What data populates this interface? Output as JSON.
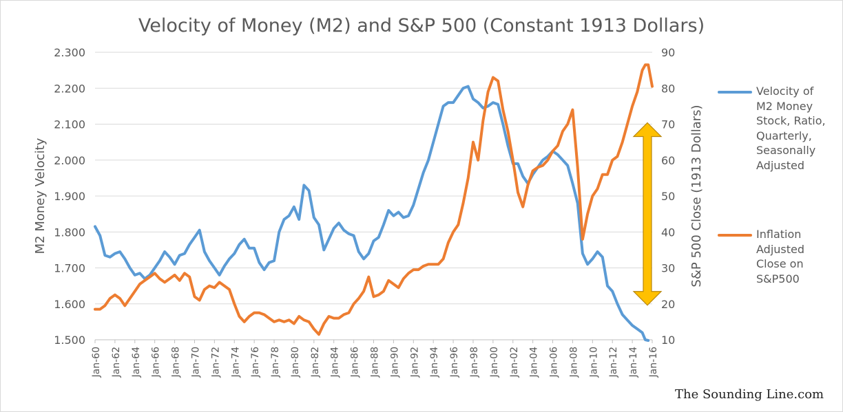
{
  "chart_data": {
    "type": "line",
    "title": "Velocity of Money (M2) and S&P 500 (Constant 1913 Dollars)",
    "xlabel": "",
    "ylabel_left": "M2 Money Velocity",
    "ylabel_right": "S&P 500 Close (1913 Dollars)",
    "x_tick_labels": [
      "Jan-60",
      "Jan-62",
      "Jan-64",
      "Jan-66",
      "Jan-68",
      "Jan-70",
      "Jan-72",
      "Jan-74",
      "Jan-76",
      "Jan-78",
      "Jan-80",
      "Jan-82",
      "Jan-84",
      "Jan-86",
      "Jan-88",
      "Jan-90",
      "Jan-92",
      "Jan-94",
      "Jan-96",
      "Jan-98",
      "Jan-00",
      "Jan-02",
      "Jan-04",
      "Jan-06",
      "Jan-08",
      "Jan-10",
      "Jan-12",
      "Jan-14",
      "Jan-16"
    ],
    "x_range": [
      1960,
      2016
    ],
    "y_left": {
      "range": [
        1.5,
        2.3
      ],
      "ticks": [
        "1.500",
        "1.600",
        "1.700",
        "1.800",
        "1.900",
        "2.000",
        "2.100",
        "2.200",
        "2.300"
      ]
    },
    "y_right": {
      "range": [
        10,
        90
      ],
      "ticks": [
        "10",
        "20",
        "30",
        "40",
        "50",
        "60",
        "70",
        "80",
        "90"
      ]
    },
    "grid": "horizontal",
    "legend_position": "right",
    "series": [
      {
        "name": "Velocity of M2 Money Stock, Ratio, Quarterly, Seasonally Adjusted",
        "axis": "left",
        "color": "#5b9bd5",
        "points": [
          [
            1960.0,
            1.815
          ],
          [
            1960.5,
            1.79
          ],
          [
            1961.0,
            1.735
          ],
          [
            1961.5,
            1.73
          ],
          [
            1962.0,
            1.74
          ],
          [
            1962.5,
            1.745
          ],
          [
            1963.0,
            1.725
          ],
          [
            1963.5,
            1.7
          ],
          [
            1964.0,
            1.68
          ],
          [
            1964.5,
            1.685
          ],
          [
            1965.0,
            1.67
          ],
          [
            1965.5,
            1.68
          ],
          [
            1966.0,
            1.7
          ],
          [
            1966.5,
            1.72
          ],
          [
            1967.0,
            1.745
          ],
          [
            1967.5,
            1.73
          ],
          [
            1968.0,
            1.71
          ],
          [
            1968.5,
            1.735
          ],
          [
            1969.0,
            1.74
          ],
          [
            1969.5,
            1.765
          ],
          [
            1970.0,
            1.785
          ],
          [
            1970.5,
            1.805
          ],
          [
            1971.0,
            1.745
          ],
          [
            1971.5,
            1.72
          ],
          [
            1972.0,
            1.7
          ],
          [
            1972.5,
            1.68
          ],
          [
            1973.0,
            1.705
          ],
          [
            1973.5,
            1.725
          ],
          [
            1974.0,
            1.74
          ],
          [
            1974.5,
            1.765
          ],
          [
            1975.0,
            1.78
          ],
          [
            1975.5,
            1.755
          ],
          [
            1976.0,
            1.755
          ],
          [
            1976.5,
            1.715
          ],
          [
            1977.0,
            1.695
          ],
          [
            1977.5,
            1.715
          ],
          [
            1978.0,
            1.72
          ],
          [
            1978.5,
            1.8
          ],
          [
            1979.0,
            1.835
          ],
          [
            1979.5,
            1.845
          ],
          [
            1980.0,
            1.87
          ],
          [
            1980.5,
            1.835
          ],
          [
            1981.0,
            1.93
          ],
          [
            1981.5,
            1.915
          ],
          [
            1982.0,
            1.84
          ],
          [
            1982.5,
            1.82
          ],
          [
            1983.0,
            1.75
          ],
          [
            1983.5,
            1.78
          ],
          [
            1984.0,
            1.81
          ],
          [
            1984.5,
            1.825
          ],
          [
            1985.0,
            1.805
          ],
          [
            1985.5,
            1.795
          ],
          [
            1986.0,
            1.79
          ],
          [
            1986.5,
            1.745
          ],
          [
            1987.0,
            1.725
          ],
          [
            1987.5,
            1.74
          ],
          [
            1988.0,
            1.775
          ],
          [
            1988.5,
            1.785
          ],
          [
            1989.0,
            1.82
          ],
          [
            1989.5,
            1.86
          ],
          [
            1990.0,
            1.845
          ],
          [
            1990.5,
            1.855
          ],
          [
            1991.0,
            1.84
          ],
          [
            1991.5,
            1.845
          ],
          [
            1992.0,
            1.875
          ],
          [
            1992.5,
            1.92
          ],
          [
            1993.0,
            1.965
          ],
          [
            1993.5,
            2.0
          ],
          [
            1994.0,
            2.05
          ],
          [
            1994.5,
            2.1
          ],
          [
            1995.0,
            2.15
          ],
          [
            1995.5,
            2.16
          ],
          [
            1996.0,
            2.16
          ],
          [
            1996.5,
            2.18
          ],
          [
            1997.0,
            2.2
          ],
          [
            1997.5,
            2.205
          ],
          [
            1998.0,
            2.17
          ],
          [
            1998.5,
            2.16
          ],
          [
            1999.0,
            2.145
          ],
          [
            1999.5,
            2.15
          ],
          [
            2000.0,
            2.16
          ],
          [
            2000.5,
            2.155
          ],
          [
            2001.0,
            2.1
          ],
          [
            2001.5,
            2.04
          ],
          [
            2002.0,
            1.99
          ],
          [
            2002.5,
            1.99
          ],
          [
            2003.0,
            1.955
          ],
          [
            2003.5,
            1.935
          ],
          [
            2004.0,
            1.96
          ],
          [
            2004.5,
            1.98
          ],
          [
            2005.0,
            2.0
          ],
          [
            2005.5,
            2.01
          ],
          [
            2006.0,
            2.025
          ],
          [
            2006.5,
            2.015
          ],
          [
            2007.0,
            2.0
          ],
          [
            2007.5,
            1.985
          ],
          [
            2008.0,
            1.935
          ],
          [
            2008.5,
            1.88
          ],
          [
            2009.0,
            1.74
          ],
          [
            2009.5,
            1.71
          ],
          [
            2010.0,
            1.725
          ],
          [
            2010.5,
            1.745
          ],
          [
            2011.0,
            1.73
          ],
          [
            2011.5,
            1.65
          ],
          [
            2012.0,
            1.635
          ],
          [
            2012.5,
            1.6
          ],
          [
            2013.0,
            1.57
          ],
          [
            2013.5,
            1.555
          ],
          [
            2014.0,
            1.54
          ],
          [
            2014.5,
            1.53
          ],
          [
            2015.0,
            1.52
          ],
          [
            2015.3,
            1.5
          ],
          [
            2015.6,
            1.498
          ]
        ]
      },
      {
        "name": "Inflation Adjusted Close on S&P500",
        "axis": "right",
        "color": "#ed7d31",
        "points": [
          [
            1960.0,
            18.5
          ],
          [
            1960.5,
            18.5
          ],
          [
            1961.0,
            19.5
          ],
          [
            1961.5,
            21.5
          ],
          [
            1962.0,
            22.5
          ],
          [
            1962.5,
            21.5
          ],
          [
            1963.0,
            19.5
          ],
          [
            1963.5,
            21.5
          ],
          [
            1964.0,
            23.5
          ],
          [
            1964.5,
            25.5
          ],
          [
            1965.0,
            26.5
          ],
          [
            1965.5,
            27.5
          ],
          [
            1966.0,
            28.5
          ],
          [
            1966.5,
            27.0
          ],
          [
            1967.0,
            26.0
          ],
          [
            1967.5,
            27.0
          ],
          [
            1968.0,
            28.0
          ],
          [
            1968.5,
            26.5
          ],
          [
            1969.0,
            28.5
          ],
          [
            1969.5,
            27.5
          ],
          [
            1970.0,
            22.0
          ],
          [
            1970.5,
            21.0
          ],
          [
            1971.0,
            24.0
          ],
          [
            1971.5,
            25.0
          ],
          [
            1972.0,
            24.5
          ],
          [
            1972.5,
            26.0
          ],
          [
            1973.0,
            25.0
          ],
          [
            1973.5,
            24.0
          ],
          [
            1974.0,
            20.0
          ],
          [
            1974.5,
            16.5
          ],
          [
            1975.0,
            15.0
          ],
          [
            1975.5,
            16.5
          ],
          [
            1976.0,
            17.5
          ],
          [
            1976.5,
            17.5
          ],
          [
            1977.0,
            17.0
          ],
          [
            1977.5,
            16.0
          ],
          [
            1978.0,
            15.0
          ],
          [
            1978.5,
            15.5
          ],
          [
            1979.0,
            15.0
          ],
          [
            1979.5,
            15.5
          ],
          [
            1980.0,
            14.5
          ],
          [
            1980.5,
            16.5
          ],
          [
            1981.0,
            15.5
          ],
          [
            1981.5,
            15.0
          ],
          [
            1982.0,
            13.0
          ],
          [
            1982.5,
            11.5
          ],
          [
            1983.0,
            14.5
          ],
          [
            1983.5,
            16.5
          ],
          [
            1984.0,
            16.0
          ],
          [
            1984.5,
            16.0
          ],
          [
            1985.0,
            17.0
          ],
          [
            1985.5,
            17.5
          ],
          [
            1986.0,
            20.0
          ],
          [
            1986.5,
            21.5
          ],
          [
            1987.0,
            23.5
          ],
          [
            1987.5,
            27.5
          ],
          [
            1988.0,
            22.0
          ],
          [
            1988.5,
            22.5
          ],
          [
            1989.0,
            23.5
          ],
          [
            1989.5,
            26.5
          ],
          [
            1990.0,
            25.5
          ],
          [
            1990.5,
            24.5
          ],
          [
            1991.0,
            27.0
          ],
          [
            1991.5,
            28.5
          ],
          [
            1992.0,
            29.5
          ],
          [
            1992.5,
            29.5
          ],
          [
            1993.0,
            30.5
          ],
          [
            1993.5,
            31.0
          ],
          [
            1994.0,
            31.0
          ],
          [
            1994.5,
            31.0
          ],
          [
            1995.0,
            32.5
          ],
          [
            1995.5,
            37.0
          ],
          [
            1996.0,
            40.0
          ],
          [
            1996.5,
            42.0
          ],
          [
            1997.0,
            48.0
          ],
          [
            1997.5,
            55.0
          ],
          [
            1998.0,
            65.0
          ],
          [
            1998.5,
            60.0
          ],
          [
            1999.0,
            71.0
          ],
          [
            1999.5,
            79.0
          ],
          [
            2000.0,
            83.0
          ],
          [
            2000.5,
            82.0
          ],
          [
            2001.0,
            74.0
          ],
          [
            2001.5,
            68.0
          ],
          [
            2002.0,
            60.0
          ],
          [
            2002.5,
            51.0
          ],
          [
            2003.0,
            47.0
          ],
          [
            2003.5,
            53.0
          ],
          [
            2004.0,
            57.0
          ],
          [
            2004.5,
            58.0
          ],
          [
            2005.0,
            58.5
          ],
          [
            2005.5,
            60.0
          ],
          [
            2006.0,
            62.5
          ],
          [
            2006.5,
            64.0
          ],
          [
            2007.0,
            68.0
          ],
          [
            2007.5,
            70.0
          ],
          [
            2008.0,
            74.0
          ],
          [
            2008.5,
            58.0
          ],
          [
            2009.0,
            38.0
          ],
          [
            2009.5,
            45.0
          ],
          [
            2010.0,
            50.0
          ],
          [
            2010.5,
            52.0
          ],
          [
            2011.0,
            56.0
          ],
          [
            2011.5,
            56.0
          ],
          [
            2012.0,
            60.0
          ],
          [
            2012.5,
            61.0
          ],
          [
            2013.0,
            65.0
          ],
          [
            2013.5,
            70.0
          ],
          [
            2014.0,
            75.0
          ],
          [
            2014.5,
            79.0
          ],
          [
            2015.0,
            85.0
          ],
          [
            2015.3,
            86.5
          ],
          [
            2015.6,
            86.5
          ],
          [
            2016.0,
            80.5
          ]
        ]
      }
    ]
  },
  "legend": [
    {
      "name": "Velocity of M2 Money Stock, Ratio, Quarterly, Seasonally Adjusted",
      "lines": [
        "Velocity of",
        "M2 Money",
        "Stock, Ratio,",
        "Quarterly,",
        "Seasonally",
        "Adjusted"
      ],
      "color": "#5b9bd5"
    },
    {
      "name": "Inflation Adjusted Close on S&P500",
      "lines": [
        "Inflation",
        "Adjusted",
        "Close on",
        "S&P500"
      ],
      "color": "#ed7d31"
    }
  ],
  "annotation": {
    "type": "double-arrow",
    "color": "#ffc000",
    "from_value_right": 70,
    "to_value_right": 20
  },
  "watermark": "The Sounding Line.com"
}
